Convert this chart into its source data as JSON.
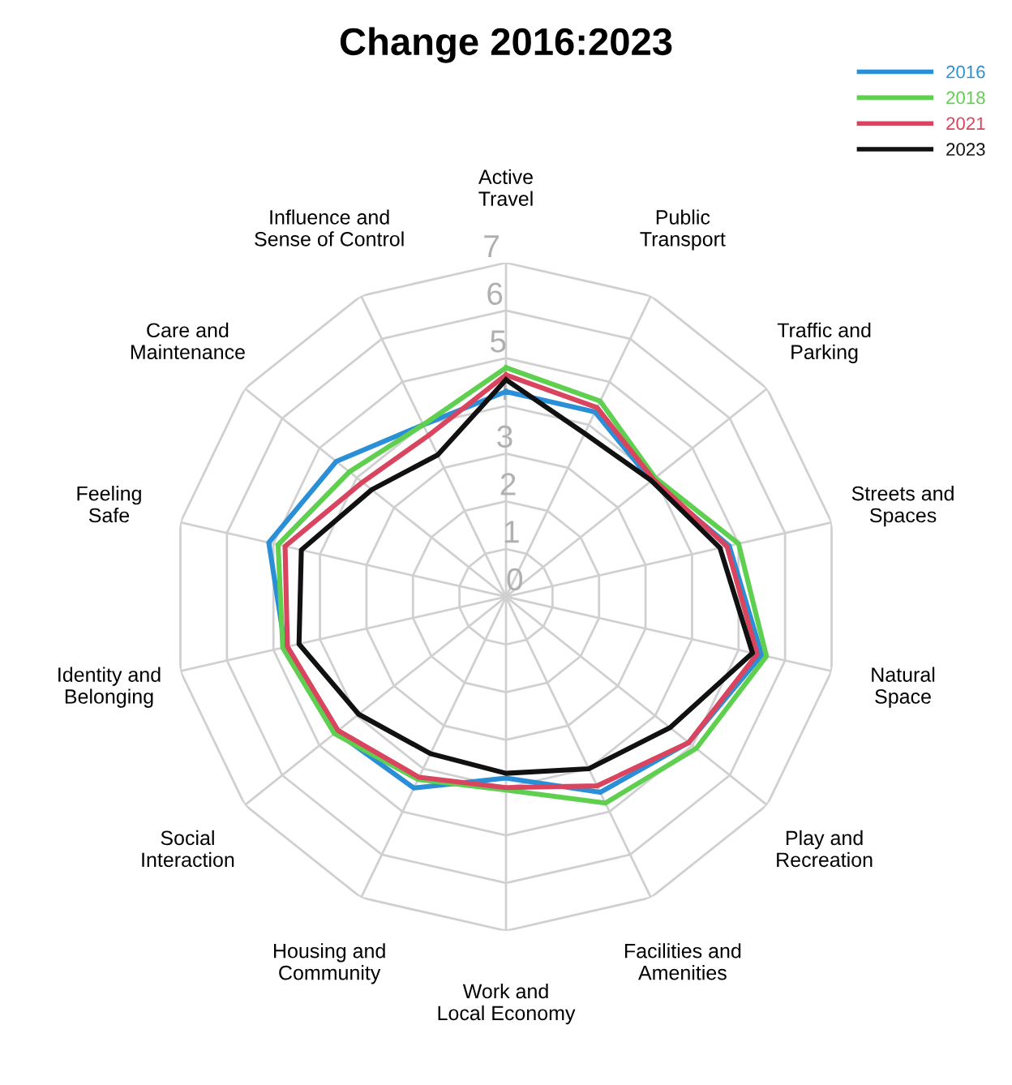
{
  "chart_data": {
    "type": "radar",
    "title": "Change 2016:2023",
    "categories": [
      "Active\nTravel",
      "Public\nTransport",
      "Traffic and\nParking",
      "Streets and\nSpaces",
      "Natural\nSpace",
      "Play and\nRecreation",
      "Facilities and\nAmenities",
      "Work and\nLocal Economy",
      "Housing and\nCommunity",
      "Social\nInteraction",
      "Identity and\nBelonging",
      "Feeling\nSafe",
      "Care and\nMaintenance",
      "Influence and\nSense of Control"
    ],
    "series": [
      {
        "name": "2016",
        "color": "#2b8fd8",
        "values": [
          4.3,
          4.3,
          3.9,
          4.8,
          5.5,
          4.9,
          4.55,
          3.8,
          4.45,
          4.55,
          4.75,
          5.1,
          4.55,
          4.0
        ]
      },
      {
        "name": "2018",
        "color": "#5fcf4f",
        "values": [
          4.8,
          4.55,
          4.0,
          5.0,
          5.6,
          5.1,
          4.8,
          4.05,
          4.25,
          4.6,
          4.8,
          4.9,
          4.2,
          4.0
        ]
      },
      {
        "name": "2021",
        "color": "#d9455f",
        "values": [
          4.65,
          4.4,
          3.95,
          4.75,
          5.4,
          4.9,
          4.4,
          4.0,
          4.2,
          4.5,
          4.7,
          4.75,
          3.85,
          3.75
        ]
      },
      {
        "name": "2023",
        "color": "#111111",
        "values": [
          4.55,
          3.8,
          3.9,
          4.6,
          5.3,
          4.4,
          4.0,
          3.7,
          3.65,
          3.95,
          4.45,
          4.4,
          3.6,
          3.3
        ]
      }
    ],
    "ylim": [
      0,
      7
    ],
    "yticks": [
      0,
      1,
      2,
      3,
      4,
      5,
      6,
      7
    ],
    "grid": true,
    "legend": "top right",
    "line_style": "solid",
    "marker": "none"
  }
}
